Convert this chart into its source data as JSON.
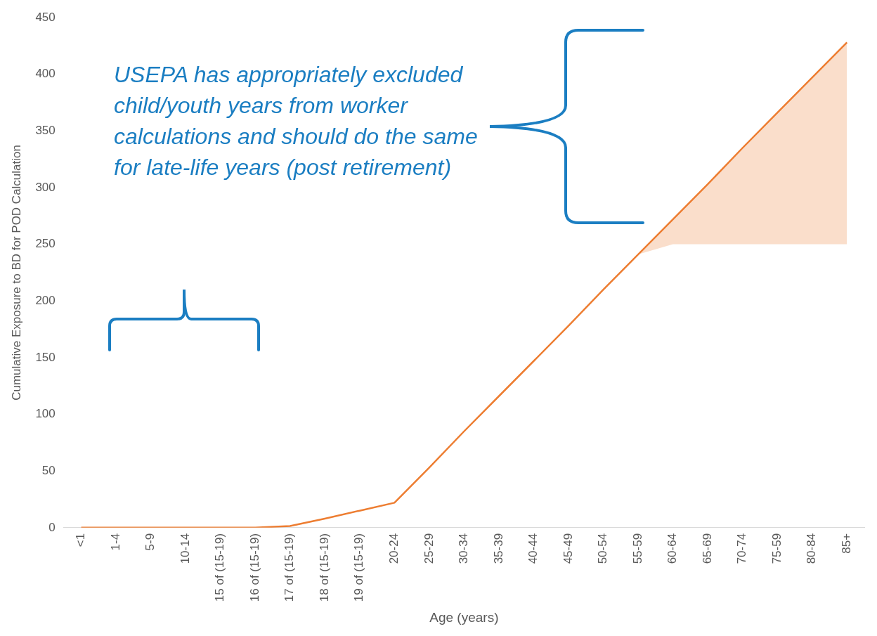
{
  "chart_data": {
    "type": "line",
    "xlabel": "Age (years)",
    "ylabel": "Cumulative Exposure to BD for POD Calculation",
    "categories": [
      "<1",
      "1-4",
      "5-9",
      "10-14",
      "15 of (15-19)",
      "16 of (15-19)",
      "17 of (15-19)",
      "18 of (15-19)",
      "19 of (15-19)",
      "20-24",
      "25-29",
      "30-34",
      "35-39",
      "40-44",
      "45-49",
      "50-54",
      "55-59",
      "60-64",
      "65-69",
      "70-74",
      "75-59",
      "80-84",
      "85+"
    ],
    "series": [
      {
        "color": "#ed7d31",
        "values": [
          0,
          0,
          0,
          0,
          0,
          0,
          1.5,
          8,
          15,
          22,
          53,
          85,
          116,
          147,
          178,
          210,
          241,
          272,
          303,
          335,
          366,
          397,
          428
        ],
        "lower": [
          null,
          null,
          null,
          null,
          null,
          null,
          null,
          null,
          null,
          null,
          null,
          null,
          null,
          null,
          null,
          null,
          241,
          250,
          250,
          250,
          250,
          250,
          250
        ],
        "upper": [
          null,
          null,
          null,
          null,
          null,
          null,
          null,
          null,
          null,
          null,
          null,
          null,
          null,
          null,
          null,
          null,
          241,
          272,
          303,
          335,
          366,
          397,
          428
        ]
      }
    ],
    "ylim": [
      0,
      450
    ],
    "yticks": [
      0,
      50,
      100,
      150,
      200,
      250,
      300,
      350,
      400,
      450
    ],
    "grid": false,
    "legend": false,
    "marker": "none",
    "line_style": "solid",
    "annotations": [
      "USEPA has appropriately excluded child/youth years from worker calculations and should do the same for late-life years (post retirement)"
    ]
  }
}
